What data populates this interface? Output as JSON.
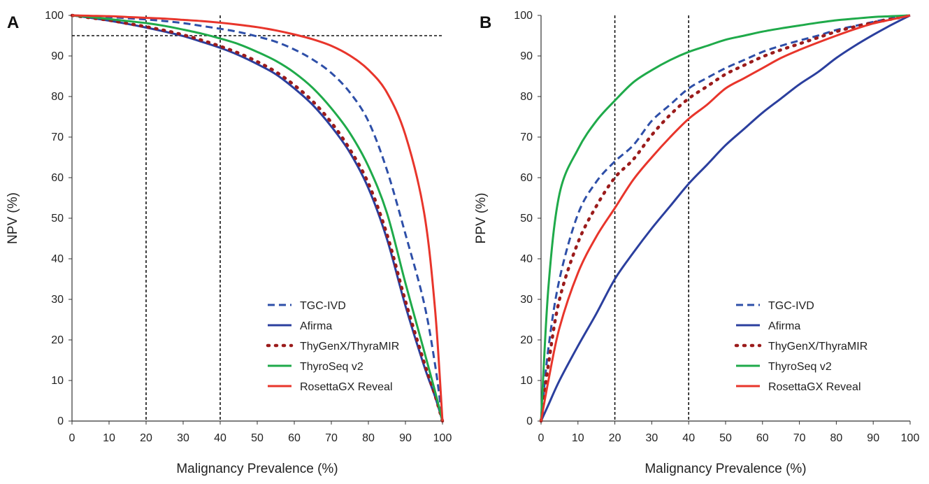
{
  "chart_data": [
    {
      "type": "line",
      "panel_label": "A",
      "xlabel": "Malignancy Prevalence (%)",
      "ylabel": "NPV (%)",
      "xlim": [
        0,
        100
      ],
      "ylim": [
        0,
        100
      ],
      "xticks": [
        "0",
        "10",
        "20",
        "30",
        "40",
        "50",
        "60",
        "70",
        "80",
        "90",
        "100"
      ],
      "yticks": [
        "0",
        "10",
        "20",
        "30",
        "40",
        "50",
        "60",
        "70",
        "80",
        "90",
        "100"
      ],
      "reference_lines": {
        "vertical": [
          20,
          40
        ],
        "horizontal": [
          95
        ]
      },
      "legend_position": "bottom-right",
      "x": [
        0,
        5,
        10,
        15,
        20,
        25,
        30,
        35,
        40,
        45,
        50,
        55,
        60,
        65,
        70,
        75,
        80,
        85,
        90,
        95,
        98,
        100
      ],
      "series": [
        {
          "name": "TGC-IVD",
          "color": "#2e4fa8",
          "style": "dashed",
          "values": [
            100,
            99.8,
            99.6,
            99.3,
            99,
            98.6,
            98.1,
            97.4,
            96.7,
            95.9,
            94.8,
            93.5,
            91.6,
            89.1,
            85.8,
            81,
            73.9,
            61.9,
            46.1,
            29.2,
            13.9,
            0
          ]
        },
        {
          "name": "Afirma",
          "color": "#2b3f9e",
          "style": "solid",
          "values": [
            100,
            99.4,
            98.7,
            97.9,
            97,
            96,
            94.9,
            93.5,
            92,
            90.2,
            88,
            85.5,
            82,
            77.9,
            72.6,
            66.2,
            57.4,
            44.9,
            28.4,
            13.7,
            6,
            0
          ]
        },
        {
          "name": "ThyGenX/ThyraMIR",
          "color": "#9b1b1b",
          "style": "dotted",
          "values": [
            100,
            99.4,
            98.8,
            98,
            97.2,
            96.3,
            95.2,
            93.9,
            92.4,
            90.7,
            88.6,
            86.1,
            82.8,
            78.8,
            73.6,
            67,
            58.6,
            46.1,
            29.6,
            14.6,
            6.3,
            0
          ]
        },
        {
          "name": "ThyroSeq v2",
          "color": "#1faa4a",
          "style": "solid",
          "values": [
            100,
            99.6,
            99.1,
            98.6,
            98.1,
            97.4,
            96.5,
            95.5,
            94.3,
            92.9,
            91,
            88.8,
            85.9,
            82.1,
            77.1,
            71,
            62.8,
            51.3,
            34,
            17.4,
            7.3,
            0
          ]
        },
        {
          "name": "RosettaGX Reveal",
          "color": "#e8352b",
          "style": "solid",
          "values": [
            100,
            99.9,
            99.8,
            99.6,
            99.4,
            99.2,
            98.9,
            98.6,
            98.2,
            97.7,
            97.1,
            96.3,
            95.3,
            94.1,
            92.5,
            90.1,
            86.6,
            81,
            70.5,
            51.6,
            27.5,
            0
          ]
        }
      ]
    },
    {
      "type": "line",
      "panel_label": "B",
      "xlabel": "Malignancy Prevalence (%)",
      "ylabel": "PPV (%)",
      "xlim": [
        0,
        100
      ],
      "ylim": [
        0,
        100
      ],
      "xticks": [
        "0",
        "10",
        "20",
        "30",
        "40",
        "50",
        "60",
        "70",
        "80",
        "90",
        "100"
      ],
      "yticks": [
        "0",
        "10",
        "20",
        "30",
        "40",
        "50",
        "60",
        "70",
        "80",
        "90",
        "100"
      ],
      "reference_lines": {
        "vertical": [
          20,
          40
        ],
        "horizontal": []
      },
      "legend_position": "bottom-right",
      "x": [
        0,
        2,
        5,
        10,
        15,
        20,
        25,
        30,
        35,
        40,
        45,
        50,
        55,
        60,
        65,
        70,
        75,
        80,
        85,
        90,
        95,
        100
      ],
      "series": [
        {
          "name": "TGC-IVD",
          "color": "#2e4fa8",
          "style": "dashed",
          "values": [
            0,
            18,
            35,
            51,
            59,
            64,
            68,
            74,
            78,
            82,
            84.6,
            87,
            89,
            91,
            92.5,
            93.8,
            95,
            96.4,
            97.4,
            98.4,
            99.3,
            100
          ]
        },
        {
          "name": "Afirma",
          "color": "#2b3f9e",
          "style": "solid",
          "values": [
            0,
            4,
            10,
            18.5,
            26.5,
            35,
            41.5,
            47.5,
            53,
            58.5,
            63.2,
            68,
            72,
            76,
            79.5,
            83,
            86,
            89.5,
            92.5,
            95.2,
            97.7,
            100
          ]
        },
        {
          "name": "ThyGenX/ThyraMIR",
          "color": "#9b1b1b",
          "style": "dotted",
          "values": [
            0,
            14,
            30,
            44,
            53,
            60,
            64.5,
            70.5,
            75.5,
            79.5,
            82.5,
            85.5,
            87.7,
            89.8,
            91.5,
            93,
            94.5,
            96,
            97.2,
            98.2,
            99.1,
            100
          ]
        },
        {
          "name": "ThyroSeq v2",
          "color": "#1faa4a",
          "style": "solid",
          "values": [
            0,
            33,
            56,
            67,
            74,
            79,
            83.5,
            86.5,
            89,
            91,
            92.5,
            94,
            95,
            96,
            96.8,
            97.5,
            98.2,
            98.8,
            99.2,
            99.6,
            99.8,
            100
          ]
        },
        {
          "name": "RosettaGX Reveal",
          "color": "#e8352b",
          "style": "solid",
          "values": [
            0,
            10,
            23,
            36.5,
            45.5,
            52.5,
            59.5,
            65,
            70,
            74.5,
            78,
            82,
            84.5,
            87,
            89.5,
            91.5,
            93.3,
            95,
            96.6,
            98,
            99,
            100
          ]
        }
      ]
    }
  ]
}
